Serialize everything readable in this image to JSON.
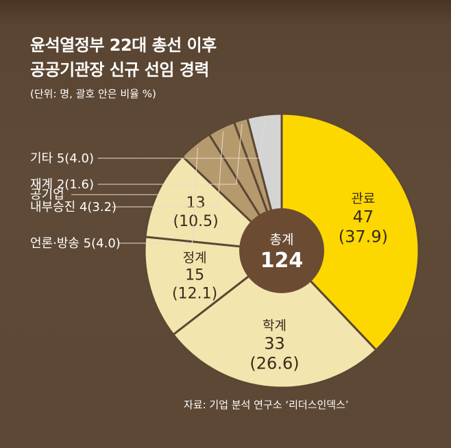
{
  "title_line1": "윤석열정부 22대 총선 이후",
  "title_line2": "공공기관장 신규 선임 경력",
  "unit_note": "(단위: 명, 괄호 안은 비율 %)",
  "source": "자료: 기업 분석 연구소 ‘리더스인덱스’",
  "colors": {
    "background": "#5c4734",
    "center": "#6b4c33",
    "gov_officials": "#fcd800",
    "light_segments": "#f3e5ae",
    "side_segments": "#b59a6e",
    "other": "#d4d4d4",
    "segment_border": "#5c4734"
  },
  "chart_data": {
    "type": "pie",
    "donut": true,
    "center_label": "총계",
    "center_value": "124",
    "slices": [
      {
        "name": "관료",
        "count": 47,
        "percent": "37.9",
        "color": "#fcd800",
        "label_style": "inside"
      },
      {
        "name": "학계",
        "count": 33,
        "percent": "26.6",
        "color": "#f3e5ae",
        "label_style": "inside"
      },
      {
        "name": "정계",
        "count": 15,
        "percent": "12.1",
        "color": "#f3e5ae",
        "label_style": "inside"
      },
      {
        "name": "공기업",
        "count": 13,
        "percent": "10.5",
        "color": "#f3e5ae",
        "label_style": "split"
      },
      {
        "name": "언론·방송",
        "count": 5,
        "percent": "4.0",
        "color": "#b59a6e",
        "label_style": "outside"
      },
      {
        "name": "내부승진",
        "count": 4,
        "percent": "3.2",
        "color": "#b59a6e",
        "label_style": "outside"
      },
      {
        "name": "재계",
        "count": 2,
        "percent": "1.6",
        "color": "#b59a6e",
        "label_style": "outside"
      },
      {
        "name": "기타",
        "count": 5,
        "percent": "4.0",
        "color": "#d4d4d4",
        "label_style": "outside"
      }
    ]
  }
}
